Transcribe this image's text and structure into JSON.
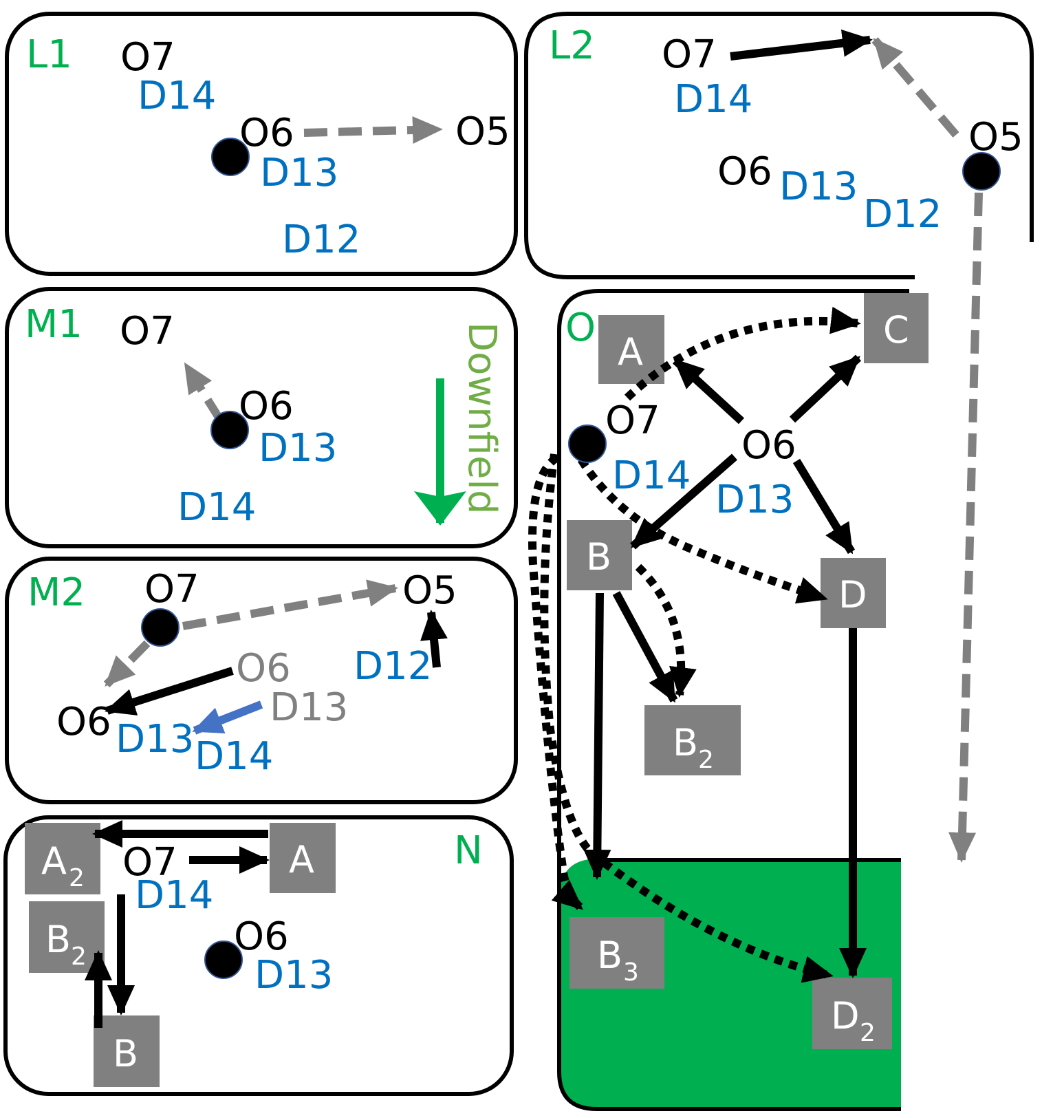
{
  "colors": {
    "panel_label": "#00B050",
    "offense": "#000000",
    "defense": "#0070C0",
    "route_gray": "#808080",
    "arrow_blue": "#4472C4",
    "box_gray": "#808080",
    "endzone": "#00B050",
    "downfield_text": "#70AD47"
  },
  "panels": {
    "L1": {
      "label": "L1",
      "players": {
        "o7": "O7",
        "d14": "D14",
        "o6": "O6",
        "d13": "D13",
        "o5": "O5",
        "d12": "D12"
      }
    },
    "L2": {
      "label": "L2",
      "players": {
        "o7": "O7",
        "d14": "D14",
        "o6": "O6",
        "d13": "D13",
        "d12": "D12",
        "o5": "O5"
      }
    },
    "M1": {
      "label": "M1",
      "players": {
        "o7": "O7",
        "o6": "O6",
        "d13": "D13",
        "d14": "D14"
      },
      "downfield": "Downfield"
    },
    "M2": {
      "label": "M2",
      "players": {
        "o7": "O7",
        "o5": "O5",
        "d12": "D12",
        "o6_old": "O6",
        "d13_old": "D13",
        "o6": "O6",
        "d13": "D13",
        "d14": "D14"
      }
    },
    "N": {
      "label": "N",
      "players": {
        "o7": "O7",
        "d14": "D14",
        "o6": "O6",
        "d13": "D13"
      },
      "boxes": {
        "a2": "A",
        "a2_sub": "2",
        "a": "A",
        "b2": "B",
        "b2_sub": "2",
        "b": "B"
      }
    },
    "O": {
      "label": "O",
      "players": {
        "o7": "O7",
        "d14": "D14",
        "o6": "O6",
        "d13": "D13"
      },
      "boxes": {
        "a": "A",
        "c": "C",
        "b": "B",
        "d": "D",
        "b2": "B",
        "b2_sub": "2",
        "b3": "B",
        "b3_sub": "3",
        "d2": "D",
        "d2_sub": "2"
      }
    }
  }
}
